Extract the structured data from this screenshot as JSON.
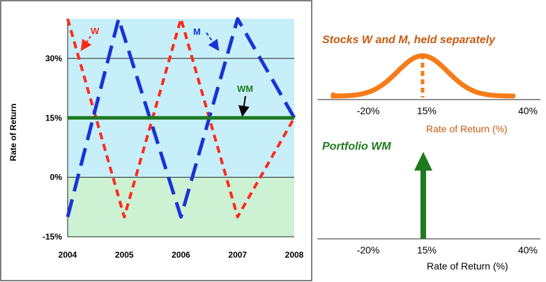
{
  "chart_data": [
    {
      "type": "line",
      "ylabel": "Rate of Return",
      "x_ticks": [
        "2004",
        "2005",
        "2006",
        "2007",
        "2008"
      ],
      "y_ticks": [
        "30%",
        "15%",
        "0%",
        "-15%"
      ],
      "ylim": [
        -15,
        40
      ],
      "xlim": [
        2004,
        2008
      ],
      "background": {
        "upper_color": "#c6effa",
        "lower_color": "#ccf2d3",
        "split_at": 0
      },
      "grid": "horizontal",
      "series": [
        {
          "name": "W",
          "color": "#ff2a1a",
          "style": "dashed",
          "x": [
            2004,
            2005,
            2006,
            2007,
            2008
          ],
          "y": [
            40,
            -10,
            40,
            -10,
            15
          ]
        },
        {
          "name": "M",
          "color": "#1a33d6",
          "style": "dashed-long",
          "x": [
            2004,
            2004.9,
            2006,
            2007,
            2008
          ],
          "y": [
            -10,
            40,
            -10,
            40,
            15
          ]
        },
        {
          "name": "WM",
          "color": "#1f7a1f",
          "style": "solid",
          "x": [
            2004,
            2008
          ],
          "y": [
            15,
            15
          ]
        }
      ]
    },
    {
      "type": "area",
      "title": "Stocks W and M, held separately",
      "xlabel": "Rate of Return (%)",
      "x_ticks": [
        "-20%",
        "15%",
        "40%"
      ],
      "xlim": [
        -30,
        50
      ],
      "mean": 15,
      "color": "#f57c18",
      "shape": "bell"
    },
    {
      "type": "bar",
      "title": "Portfolio WM",
      "xlabel": "Rate of Return (%)",
      "x_ticks": [
        "-20%",
        "15%",
        "40%"
      ],
      "xlim": [
        -30,
        50
      ],
      "values_at": [
        15
      ],
      "color": "#1f7a1f",
      "shape": "spike"
    }
  ]
}
